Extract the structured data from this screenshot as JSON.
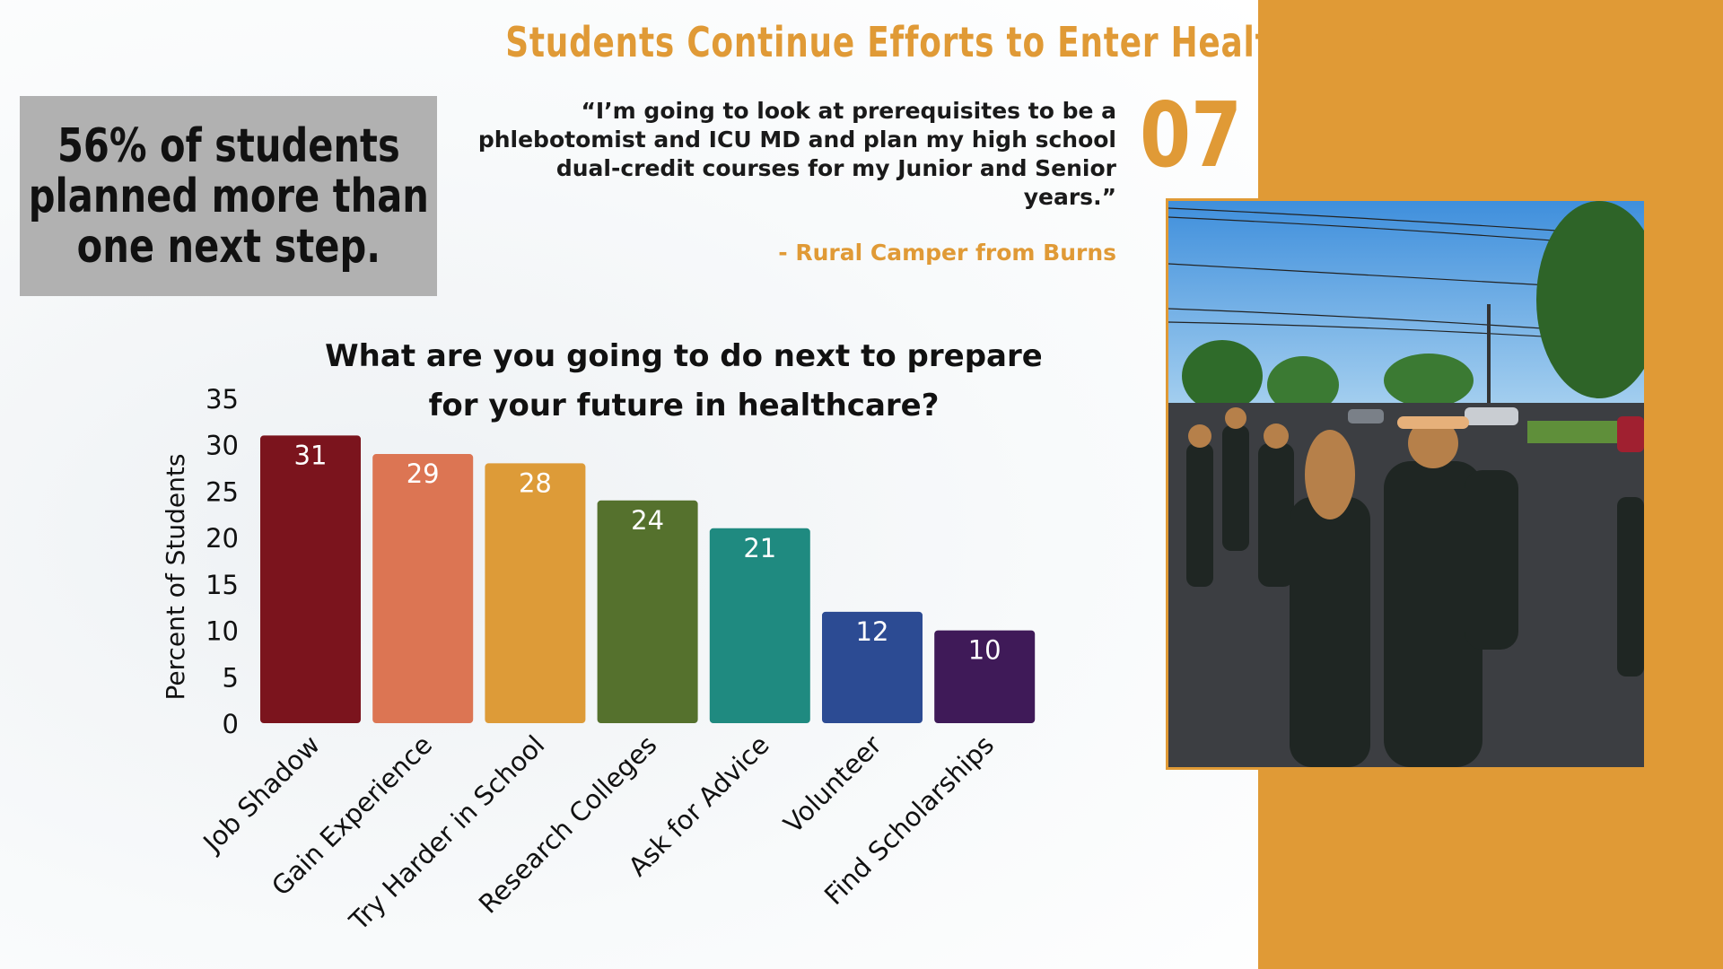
{
  "header": {
    "title": "Students Continue Efforts to Enter Health Careers",
    "page_number": "07"
  },
  "stat_box": {
    "lines": [
      "56% of students",
      "planned more than",
      "one next step."
    ]
  },
  "quote": {
    "lines": [
      "“I’m going to look at prerequisites to be a",
      "phlebotomist and ICU MD and plan my high school",
      "dual-credit courses for my Junior and Senior",
      "years.”"
    ],
    "attribution": "- Rural Camper from Burns"
  },
  "colors": {
    "accent": "#e09a36",
    "stat_box": "#b1b1b1"
  },
  "photo": {
    "description_icon": "students-on-street-photo"
  },
  "chart_data": {
    "type": "bar",
    "title_lines": [
      "What are you going to do next to prepare",
      "for your future in healthcare?"
    ],
    "ylabel": "Percent of Students",
    "xlabel": "",
    "ylim": [
      0,
      35
    ],
    "yticks": [
      0,
      5,
      10,
      15,
      20,
      25,
      30,
      35
    ],
    "categories": [
      "Job Shadow",
      "Gain Experience",
      "Try Harder in School",
      "Research Colleges",
      "Ask for Advice",
      "Volunteer",
      "Find Scholarships"
    ],
    "values": [
      31,
      29,
      28,
      24,
      21,
      12,
      10
    ],
    "colors": [
      "#7b141d",
      "#dc7553",
      "#dd9b38",
      "#55712d",
      "#1f8a80",
      "#2c4b93",
      "#3f1a58"
    ],
    "grid": false,
    "data_labels": true
  }
}
